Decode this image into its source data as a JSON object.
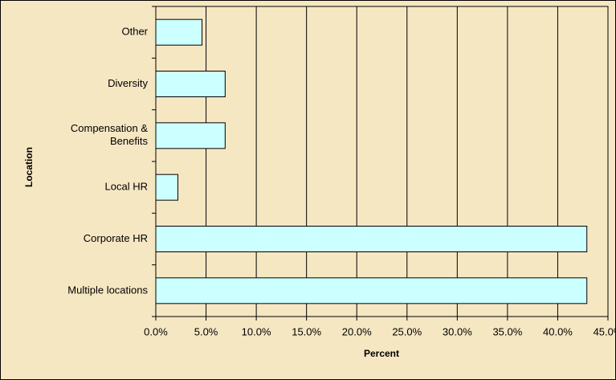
{
  "chart_data": {
    "type": "barh",
    "xlabel": "Percent",
    "ylabel": "Location",
    "categories": [
      "Other",
      "Diversity",
      "Compensation &\nBenefits",
      "Local HR",
      "Corporate HR",
      "Multiple locations"
    ],
    "values": [
      4.6,
      6.9,
      6.9,
      2.2,
      42.9,
      42.9
    ],
    "color": "#ccffff",
    "xlim": [
      0,
      45
    ],
    "xticks": [
      {
        "value": 0,
        "label": "0.0%"
      },
      {
        "value": 5,
        "label": "5.0%"
      },
      {
        "value": 10,
        "label": "10.0%"
      },
      {
        "value": 15,
        "label": "15.0%"
      },
      {
        "value": 20,
        "label": "20.0%"
      },
      {
        "value": 25,
        "label": "25.0%"
      },
      {
        "value": 30,
        "label": "30.0%"
      },
      {
        "value": 35,
        "label": "35.0%"
      },
      {
        "value": 40,
        "label": "40.0%"
      },
      {
        "value": 45,
        "label": "45.0%"
      }
    ],
    "grid": true
  }
}
